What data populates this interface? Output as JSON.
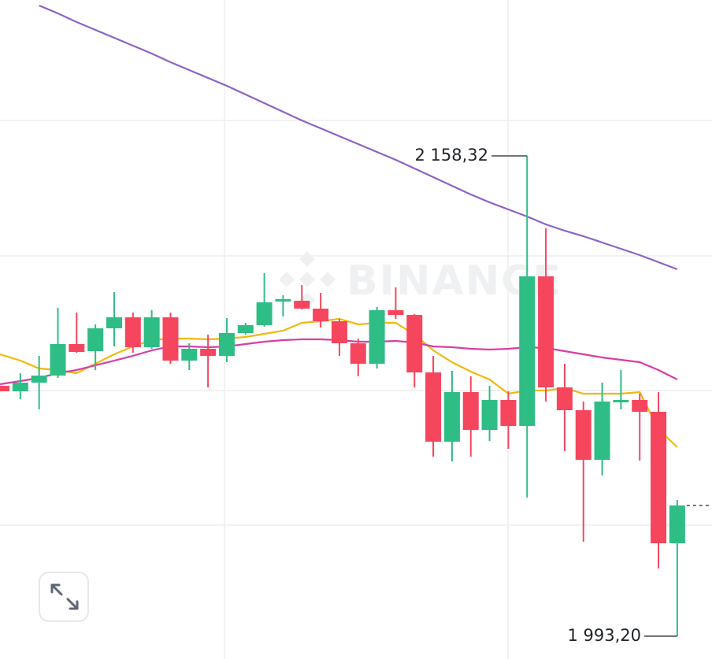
{
  "chart_data": {
    "type": "candlestick",
    "watermark": "BINANCE",
    "up_color": "#2ebd85",
    "down_color": "#f6465d",
    "ylim": [
      1985.35,
      2211.92
    ],
    "open": [
      2079.28,
      2077.39,
      2080.36,
      2082.8,
      2093.63,
      2091.19,
      2099.04,
      2102.83,
      2092.55,
      2102.83,
      2087.94,
      2092.0,
      2089.57,
      2097.42,
      2100.13,
      2108.25,
      2108.52,
      2105.81,
      2101.48,
      2093.9,
      2086.86,
      2105.27,
      2103.64,
      2083.88,
      2060.06,
      2077.12,
      2064.12,
      2074.41,
      2065.48,
      2116.91,
      2078.74,
      2070.89,
      2053.84,
      2073.6,
      2074.41,
      2070.35,
      2025.14
    ],
    "high": [
      2079.28,
      2083.61,
      2089.57,
      2106.08,
      2104.46,
      2100.4,
      2111.49,
      2104.46,
      2105.27,
      2104.46,
      2093.9,
      2096.88,
      2102.56,
      2100.94,
      2117.99,
      2110.41,
      2113.93,
      2111.22,
      2102.29,
      2095.52,
      2106.35,
      2113.12,
      2103.91,
      2089.57,
      2084.42,
      2082.53,
      2079.28,
      2077.39,
      2158.32,
      2133.42,
      2086.86,
      2073.87,
      2080.36,
      2084.7,
      2076.57,
      2077.12,
      2040.03
    ],
    "low": [
      2077.39,
      2074.68,
      2071.16,
      2081.99,
      2090.65,
      2084.7,
      2092.82,
      2090.65,
      2092.0,
      2086.86,
      2084.7,
      2078.74,
      2087.4,
      2096.88,
      2099.58,
      2103.1,
      2105.54,
      2099.31,
      2089.57,
      2082.53,
      2085.24,
      2102.29,
      2078.74,
      2054.92,
      2053.3,
      2054.92,
      2060.33,
      2057.63,
      2040.84,
      2073.87,
      2056.81,
      2025.69,
      2048.42,
      2071.16,
      2053.57,
      2016.48,
      1993.2
    ],
    "close": [
      2077.39,
      2080.36,
      2082.8,
      2093.63,
      2090.92,
      2099.04,
      2102.83,
      2092.55,
      2102.83,
      2087.94,
      2092.0,
      2089.57,
      2097.42,
      2100.13,
      2107.98,
      2109.06,
      2105.81,
      2101.48,
      2093.9,
      2086.86,
      2105.27,
      2103.64,
      2083.88,
      2060.06,
      2077.12,
      2064.12,
      2074.41,
      2065.48,
      2116.91,
      2078.74,
      2070.89,
      2053.84,
      2073.87,
      2074.41,
      2070.35,
      2025.14,
      2038.14
    ],
    "overlays": [
      {
        "color": "#f0b90b",
        "values": [
          2090.11,
          2087.94,
          2085.24,
          2084.7,
          2083.61,
          2086.86,
          2090.11,
          2092.82,
          2094.98,
          2095.52,
          2095.52,
          2095.25,
          2095.52,
          2096.06,
          2097.15,
          2098.23,
          2100.94,
          2101.48,
          2102.29,
          2100.4,
          2100.94,
          2100.94,
          2096.88,
          2091.46,
          2087.4,
          2084.15,
          2081.45,
          2076.57,
          2077.66,
          2077.66,
          2078.47,
          2076.57,
          2076.57,
          2076.57,
          2077.12,
          2064.39,
          2058.17
        ]
      },
      {
        "color": "#d63ea5",
        "values": [
          2079.82,
          2080.91,
          2081.99,
          2083.61,
          2084.7,
          2086.32,
          2087.94,
          2089.57,
          2091.46,
          2092.82,
          2092.82,
          2092.55,
          2092.82,
          2093.63,
          2094.44,
          2094.98,
          2095.25,
          2095.25,
          2094.98,
          2094.44,
          2094.44,
          2094.71,
          2094.17,
          2092.82,
          2092.55,
          2092.0,
          2091.73,
          2092.0,
          2092.55,
          2092.28,
          2091.19,
          2090.11,
          2089.03,
          2088.21,
          2087.4,
          2084.7,
          2081.45
        ]
      },
      {
        "color": "#8c62c8",
        "values": [
          null,
          null,
          2210.03,
          2207.32,
          2204.34,
          2201.63,
          2198.93,
          2196.22,
          2193.51,
          2190.54,
          2187.83,
          2185.12,
          2182.41,
          2179.44,
          2176.46,
          2173.48,
          2170.5,
          2167.8,
          2165.09,
          2162.38,
          2159.68,
          2156.97,
          2153.99,
          2151.01,
          2148.04,
          2145.06,
          2142.35,
          2139.92,
          2137.48,
          2134.77,
          2132.61,
          2130.71,
          2128.55,
          2126.38,
          2124.22,
          2121.78,
          2119.34
        ]
      }
    ],
    "max_label": {
      "value": 2158.32,
      "label": "2 158,32"
    },
    "min_label": {
      "value": 1993.2,
      "label": "1 993,20"
    }
  }
}
